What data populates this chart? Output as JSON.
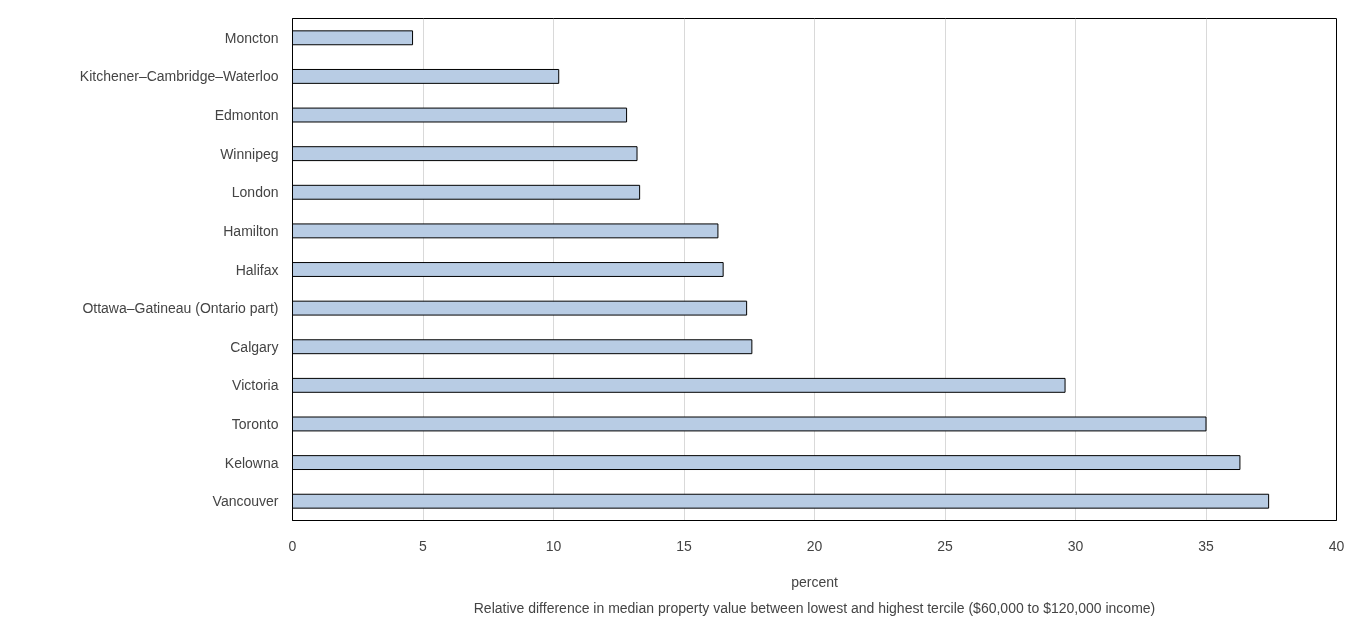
{
  "chart_data": {
    "type": "bar",
    "orientation": "horizontal",
    "categories": [
      "Moncton",
      "Kitchener–Cambridge–Waterloo",
      "Edmonton",
      "Winnipeg",
      "London",
      "Hamilton",
      "Halifax",
      "Ottawa–Gatineau (Ontario part)",
      "Calgary",
      "Victoria",
      "Toronto",
      "Kelowna",
      "Vancouver"
    ],
    "values": [
      4.6,
      10.2,
      12.8,
      13.2,
      13.3,
      16.3,
      16.5,
      17.4,
      17.6,
      29.6,
      35.0,
      36.3,
      37.4
    ],
    "color": "#b8cce4",
    "xlim": [
      0,
      40
    ],
    "xticks": [
      0,
      5,
      10,
      15,
      20,
      25,
      30,
      35,
      40
    ],
    "xlabel": "percent",
    "annotations": [
      "Relative difference in median property value between lowest and highest tercile ($60,000 to $120,000 income)"
    ],
    "grid": "x"
  }
}
